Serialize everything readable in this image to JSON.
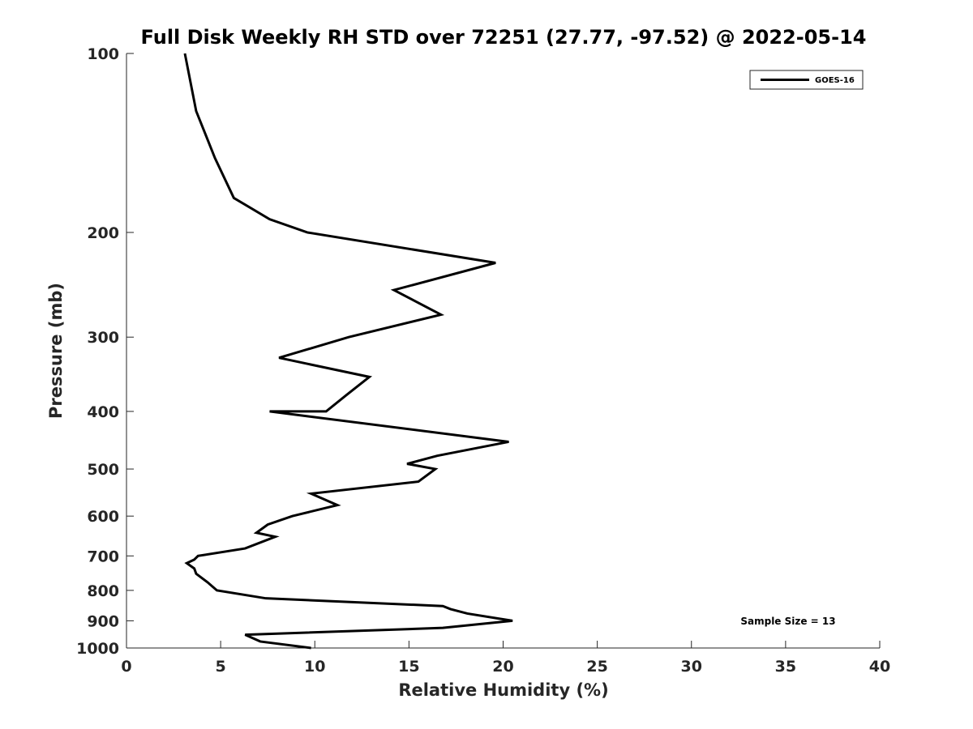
{
  "chart_data": {
    "type": "line",
    "title": "Full Disk Weekly RH STD over 72251 (27.77, -97.52) @ 2022-05-14",
    "xlabel": "Relative Humidity (%)",
    "ylabel": "Pressure (mb)",
    "xlim": [
      0,
      40
    ],
    "ylim": [
      100,
      1000
    ],
    "y_scale": "log",
    "y_reversed": true,
    "x_ticks": [
      0,
      5,
      10,
      15,
      20,
      25,
      30,
      35,
      40
    ],
    "y_ticks": [
      100,
      200,
      300,
      400,
      500,
      600,
      700,
      800,
      900,
      1000
    ],
    "legend": {
      "location": "top-right",
      "entries": [
        "GOES-16"
      ]
    },
    "annotation": "Sample Size = 13",
    "series": [
      {
        "name": "GOES-16",
        "color": "#000000",
        "points": [
          [
            3.1,
            100
          ],
          [
            3.7,
            125
          ],
          [
            4.7,
            150
          ],
          [
            5.7,
            175
          ],
          [
            7.6,
            190
          ],
          [
            9.6,
            200
          ],
          [
            19.6,
            225
          ],
          [
            14.2,
            250
          ],
          [
            16.7,
            275
          ],
          [
            11.8,
            300
          ],
          [
            8.1,
            325
          ],
          [
            12.9,
            350
          ],
          [
            11.7,
            375
          ],
          [
            10.6,
            400
          ],
          [
            7.6,
            400
          ],
          [
            20.3,
            450
          ],
          [
            16.5,
            475
          ],
          [
            14.9,
            490
          ],
          [
            16.4,
            500
          ],
          [
            15.5,
            525
          ],
          [
            9.8,
            550
          ],
          [
            11.2,
            575
          ],
          [
            8.8,
            600
          ],
          [
            7.5,
            620
          ],
          [
            6.9,
            640
          ],
          [
            7.9,
            650
          ],
          [
            6.3,
            680
          ],
          [
            3.8,
            700
          ],
          [
            3.6,
            710
          ],
          [
            3.2,
            720
          ],
          [
            3.6,
            735
          ],
          [
            3.7,
            750
          ],
          [
            4.3,
            775
          ],
          [
            4.8,
            800
          ],
          [
            7.4,
            825
          ],
          [
            16.8,
            850
          ],
          [
            17.2,
            860
          ],
          [
            18.1,
            875
          ],
          [
            20.5,
            900
          ],
          [
            16.8,
            925
          ],
          [
            6.3,
            950
          ],
          [
            7.1,
            975
          ],
          [
            9.8,
            1000
          ]
        ]
      }
    ]
  }
}
